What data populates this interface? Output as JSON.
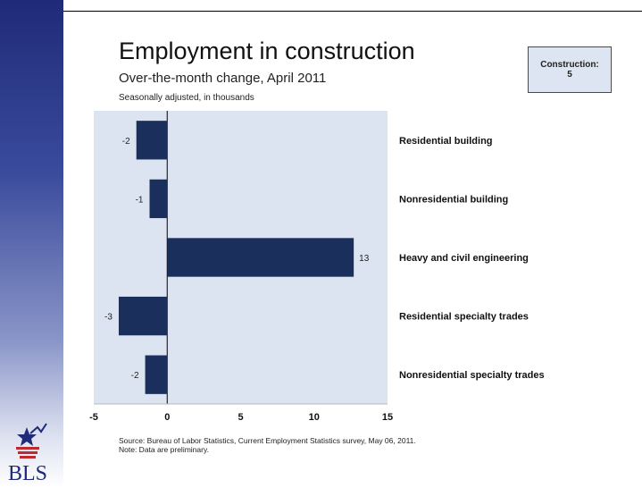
{
  "header": {
    "title": "Employment in construction",
    "subtitle": "Over-the-month change, April 2011",
    "note": "Seasonally adjusted, in thousands"
  },
  "callout": {
    "line1": "Construction:",
    "line2": "5"
  },
  "footer": {
    "source": "Source: Bureau of Labor Statistics, Current Employment Statistics survey, May 06, 2011.",
    "preliminary": "Note: Data are preliminary."
  },
  "logo": {
    "text": "BLS"
  },
  "colors": {
    "bar": "#1b2f5c",
    "plot_bg": "#dde4f1",
    "sidebar_top": "#1f2b78"
  },
  "chart_data": {
    "type": "bar",
    "orientation": "horizontal",
    "categories": [
      "Residential building",
      "Nonresidential building",
      "Heavy and civil engineering",
      "Residential specialty trades",
      "Nonresidential specialty trades"
    ],
    "values": [
      -2.1,
      -1.2,
      12.7,
      -3.3,
      -1.5
    ],
    "labels": [
      "-2",
      "-1",
      "13",
      "-3",
      "-2"
    ],
    "xlim": [
      -5,
      15
    ],
    "xticks": [
      "-5",
      "0",
      "5",
      "10",
      "15"
    ],
    "xticks_values": [
      -5,
      0,
      5,
      10,
      15
    ],
    "grid": false,
    "legend": "none"
  }
}
